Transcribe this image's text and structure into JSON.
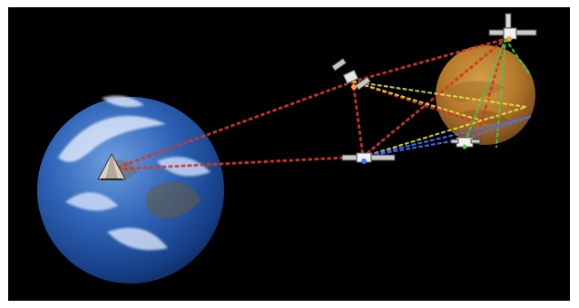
{
  "image": {
    "description_type": "space-illustration",
    "colors": {
      "frame": "#ffffff",
      "space": "#000000",
      "earth_ocean": "#1f4f9c",
      "earth_cloud": "#e8eef6",
      "mars": "#b4782a",
      "red_links": "#d1382b",
      "yellow_links": "#e7e24a",
      "green_links": "#3ecf4a",
      "blue_links": "#3f73ff"
    }
  },
  "icons": {
    "earth": "earth-icon",
    "mars": "mars-icon",
    "relay_satellites": [
      "satellite-icon",
      "satellite-icon",
      "satellite-icon"
    ],
    "ground_station": "ground-station-icon",
    "mars_lander": "lander-icon"
  }
}
